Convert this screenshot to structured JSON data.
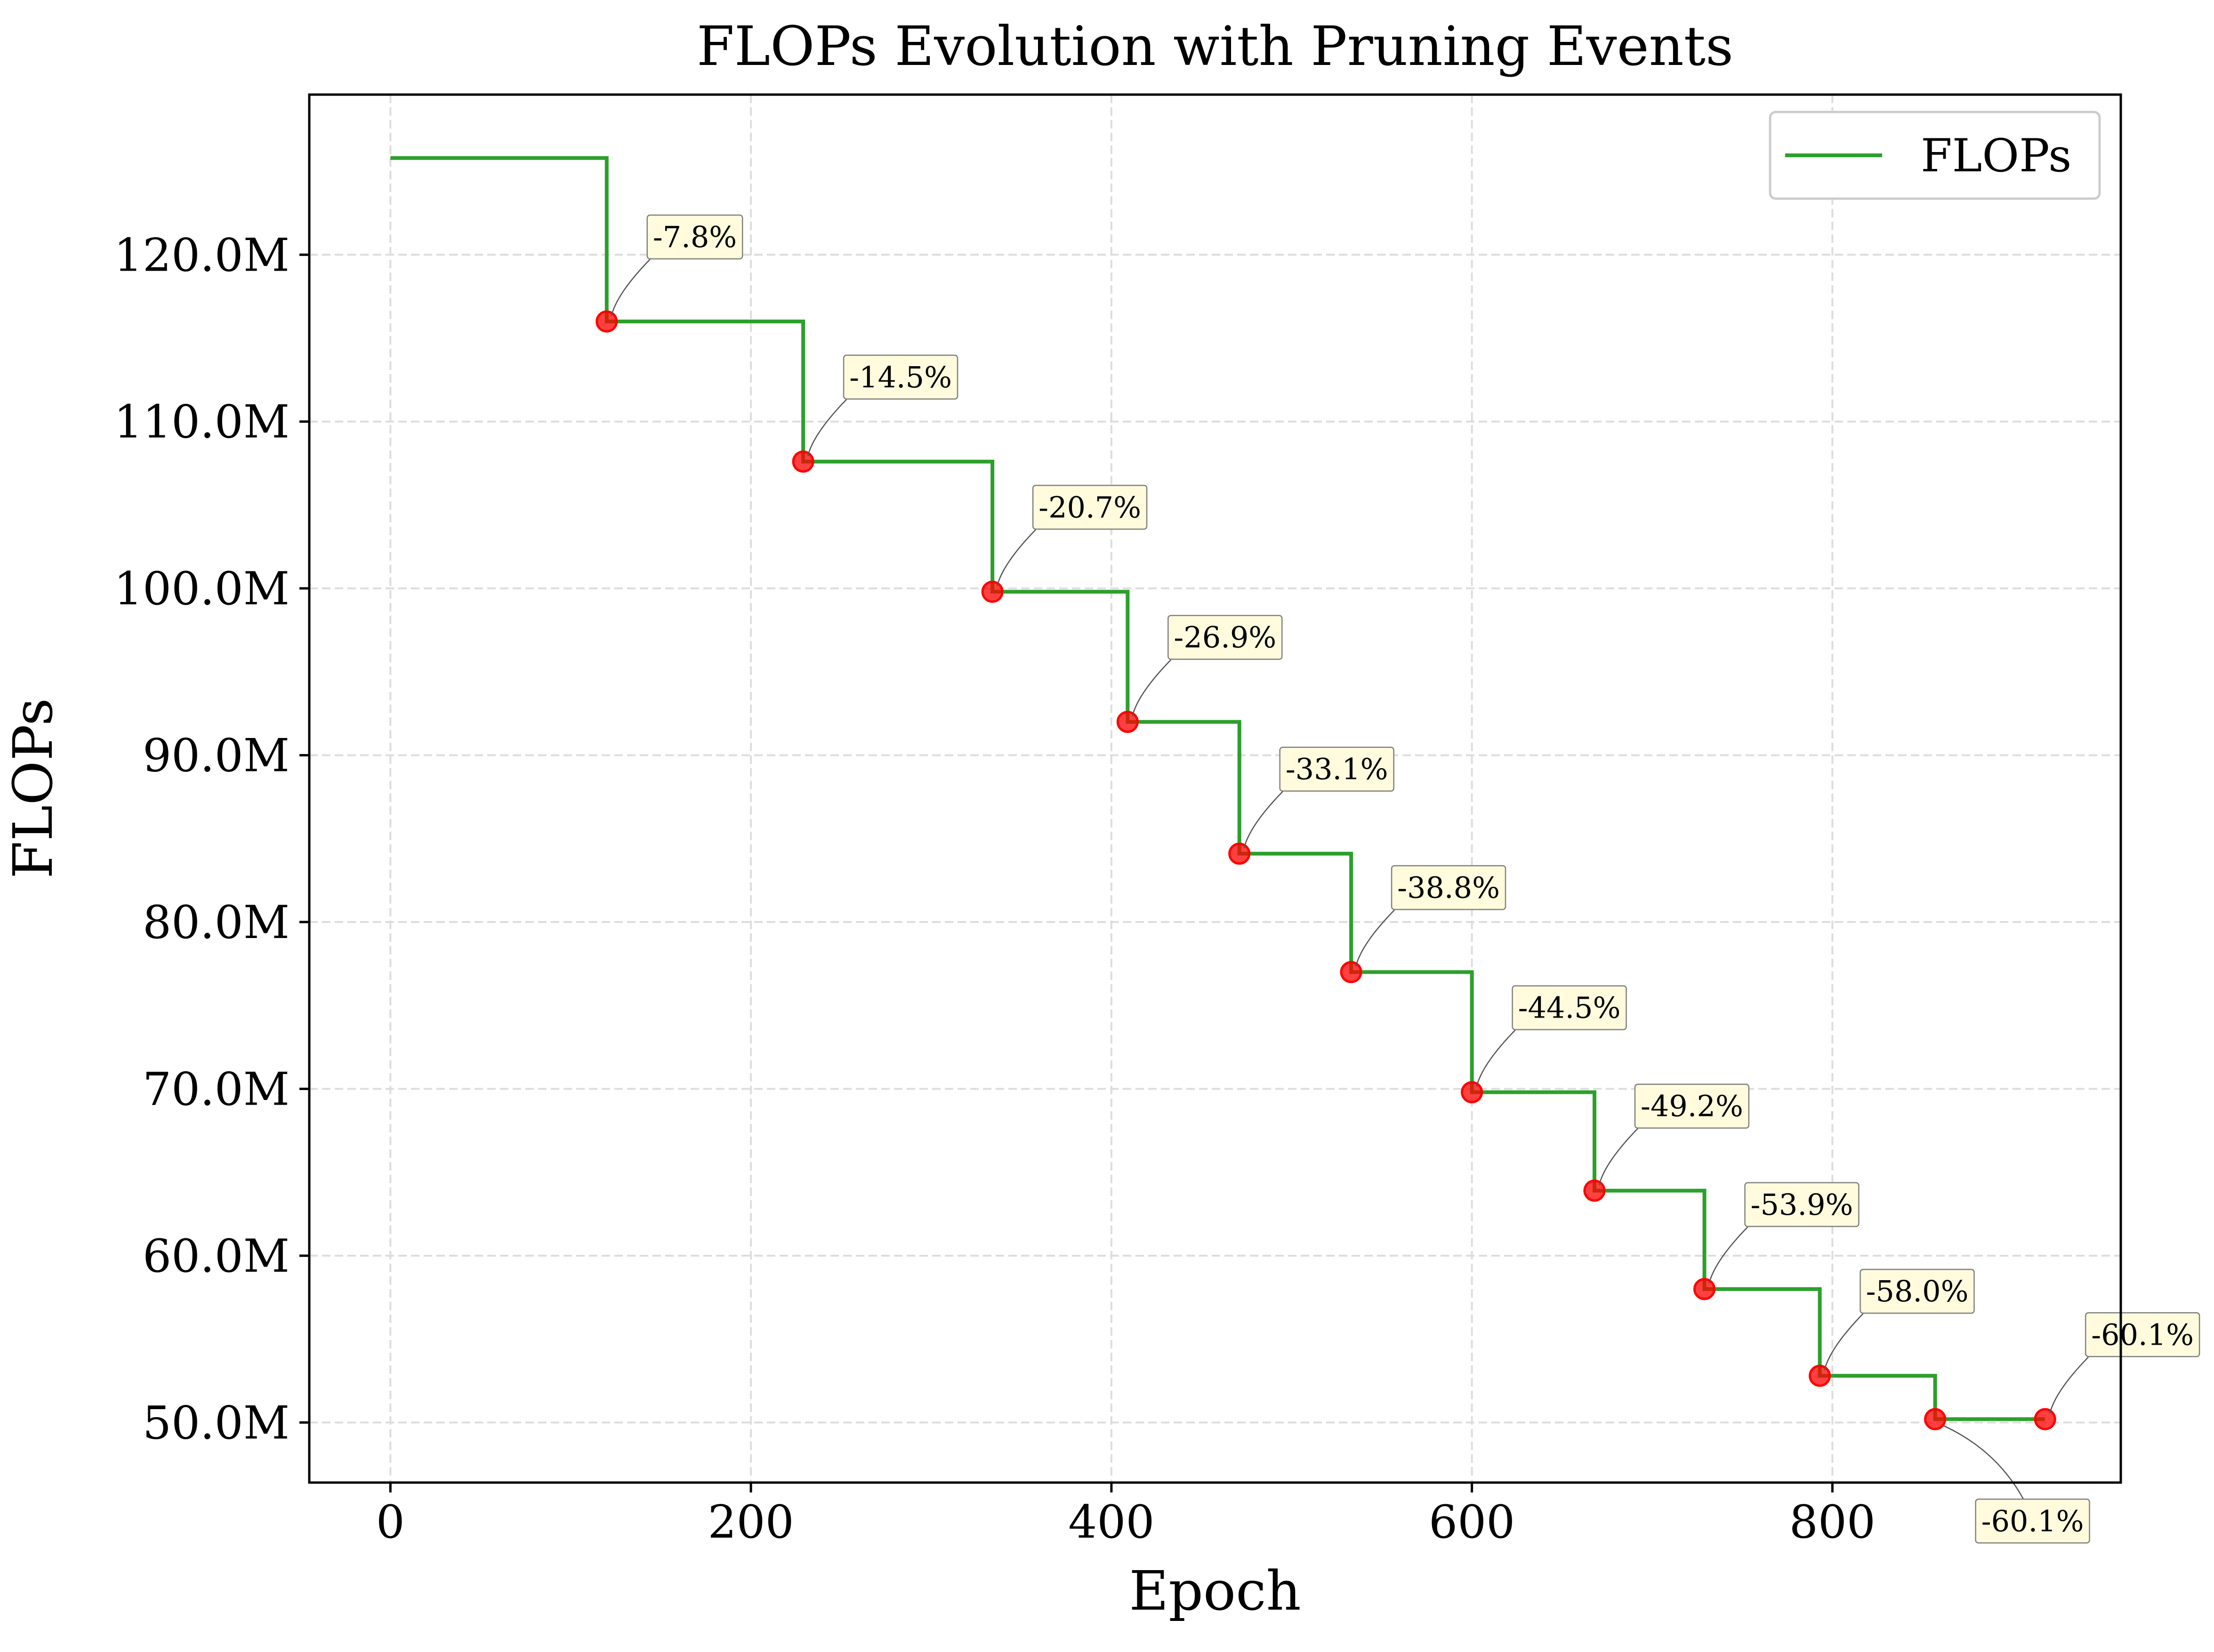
{
  "chart_data": {
    "type": "line",
    "title": "FLOPs Evolution with Pruning Events",
    "xlabel": "Epoch",
    "ylabel": "FLOPs",
    "xlim": [
      -45,
      960
    ],
    "ylim": [
      46.4,
      129.6
    ],
    "xticks": [
      0,
      200,
      400,
      600,
      800
    ],
    "xtick_labels": [
      "0",
      "200",
      "400",
      "600",
      "800"
    ],
    "yticks": [
      50,
      60,
      70,
      80,
      90,
      100,
      110,
      120
    ],
    "ytick_labels": [
      "50.0M",
      "60.0M",
      "70.0M",
      "80.0M",
      "90.0M",
      "100.0M",
      "110.0M",
      "120.0M"
    ],
    "grid": true,
    "legend_position": "top-right",
    "step_style": "post",
    "series": [
      {
        "name": "FLOPs",
        "color": "#2ca02c",
        "x": [
          0,
          120,
          229,
          334,
          409,
          471,
          533,
          600,
          668,
          729,
          793,
          857,
          918
        ],
        "y": [
          125.8,
          116.0,
          107.6,
          99.8,
          92.0,
          84.1,
          77.0,
          69.8,
          63.9,
          58.0,
          52.8,
          50.2,
          50.2
        ]
      }
    ],
    "pruning_events": {
      "color": "#ff0000",
      "points": [
        {
          "x": 120,
          "y": 116.0,
          "label": "-7.8%"
        },
        {
          "x": 229,
          "y": 107.6,
          "label": "-14.5%"
        },
        {
          "x": 334,
          "y": 99.8,
          "label": "-20.7%"
        },
        {
          "x": 409,
          "y": 92.0,
          "label": "-26.9%"
        },
        {
          "x": 471,
          "y": 84.1,
          "label": "-33.1%"
        },
        {
          "x": 533,
          "y": 77.0,
          "label": "-38.8%"
        },
        {
          "x": 600,
          "y": 69.8,
          "label": "-44.5%"
        },
        {
          "x": 668,
          "y": 63.9,
          "label": "-49.2%"
        },
        {
          "x": 729,
          "y": 58.0,
          "label": "-53.9%"
        },
        {
          "x": 793,
          "y": 52.8,
          "label": "-58.0%"
        },
        {
          "x": 857,
          "y": 50.2,
          "label": "-60.1%",
          "placement": "below-right"
        },
        {
          "x": 918,
          "y": 50.2,
          "label": "-60.1%"
        }
      ]
    },
    "colors": {
      "annotation_box_fill": "#fffbdc",
      "annotation_box_edge": "#808080",
      "grid": "#dddddd",
      "axes": "#000000"
    }
  }
}
